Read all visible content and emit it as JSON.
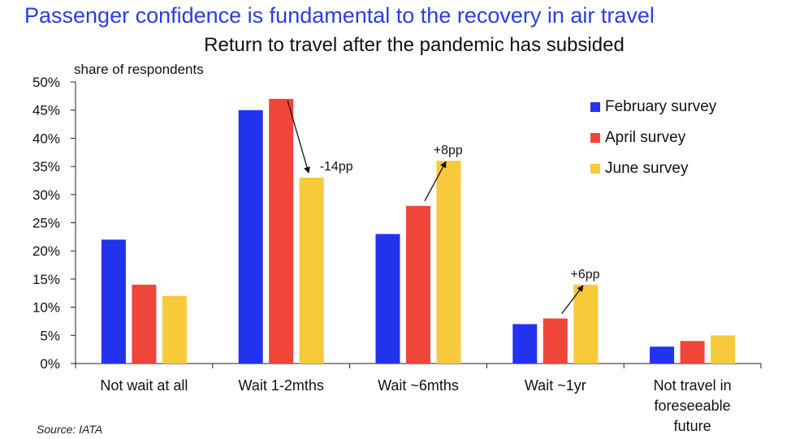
{
  "headline": "Passenger confidence is fundamental to the recovery in air travel",
  "source": "Source: IATA",
  "colors": {
    "headline": "#2a3de8"
  },
  "chart_data": {
    "type": "bar",
    "title": "Return to travel after the pandemic has subsided",
    "ylabel": "share of respondents",
    "xlabel": "",
    "ylim": [
      0,
      50
    ],
    "yticks": [
      0,
      5,
      10,
      15,
      20,
      25,
      30,
      35,
      40,
      45,
      50
    ],
    "ytick_labels": [
      "0%",
      "5%",
      "10%",
      "15%",
      "20%",
      "25%",
      "30%",
      "35%",
      "40%",
      "45%",
      "50%"
    ],
    "categories": [
      [
        "Not wait at all"
      ],
      [
        "Wait 1-2mths"
      ],
      [
        "Wait ~6mths"
      ],
      [
        "Wait ~1yr"
      ],
      [
        "Not travel in",
        "foreseeable",
        "future"
      ]
    ],
    "series": [
      {
        "name": "February survey",
        "color": "#2233ee",
        "values": [
          22,
          45,
          23,
          7,
          3
        ]
      },
      {
        "name": "April survey",
        "color": "#f0463a",
        "values": [
          14,
          47,
          28,
          8,
          4
        ]
      },
      {
        "name": "June survey",
        "color": "#f9c93c",
        "values": [
          12,
          33,
          36,
          14,
          5
        ]
      }
    ],
    "annotations": [
      {
        "category": 1,
        "from_series": 1,
        "to_series": 2,
        "text": "-14pp"
      },
      {
        "category": 2,
        "from_series": 1,
        "to_series": 2,
        "text": "+8pp"
      },
      {
        "category": 3,
        "from_series": 1,
        "to_series": 2,
        "text": "+6pp"
      }
    ],
    "grid": false,
    "legend_position": "top-right"
  }
}
